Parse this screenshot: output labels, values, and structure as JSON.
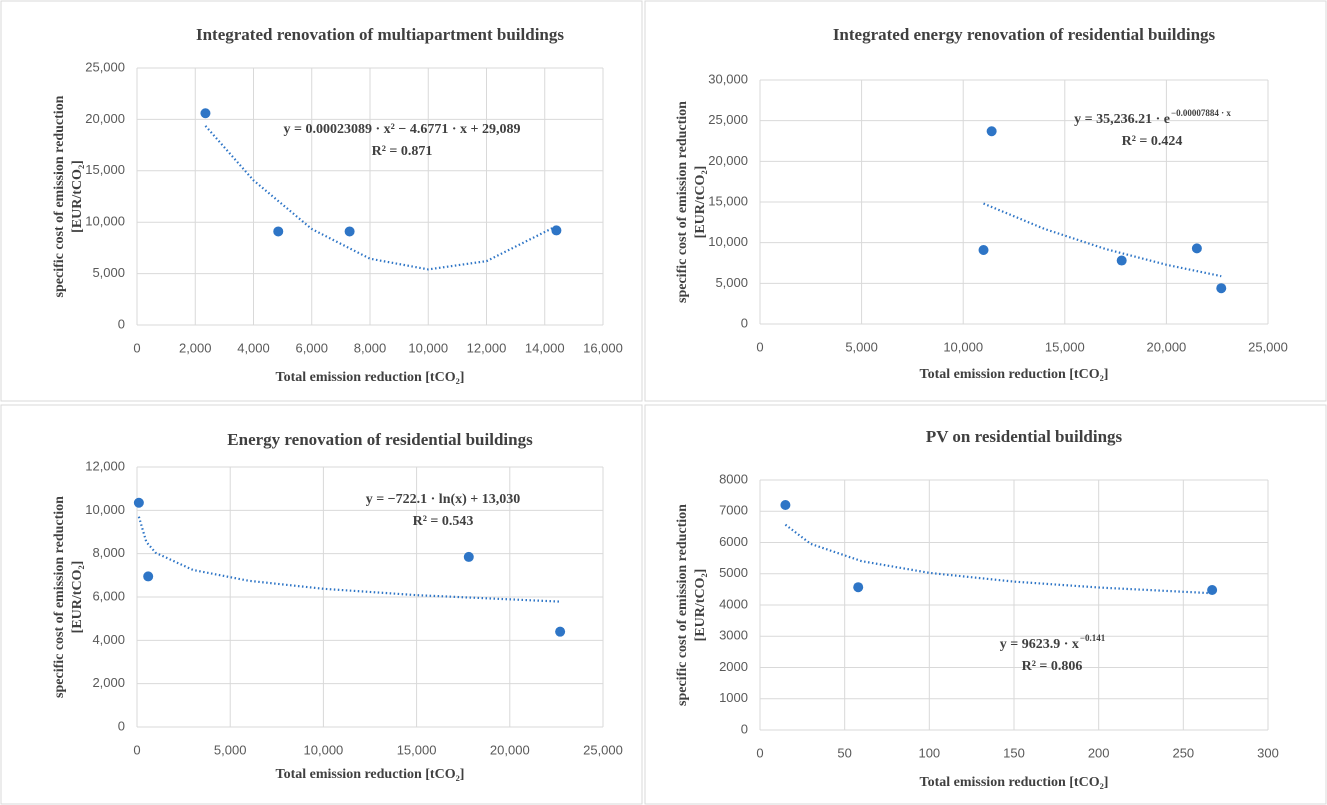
{
  "chart_data": [
    {
      "type": "scatter",
      "title": "Integrated renovation of multiapartment buildings",
      "xlabel": "Total emission reduction [tCO₂]",
      "ylabel": [
        "specific cost of emission reduction",
        "[EUR/tCO₂]"
      ],
      "x": [
        2350,
        4850,
        7300,
        14400
      ],
      "values": [
        20600,
        9100,
        9100,
        9200
      ],
      "color": "#2e75c6",
      "trendline": {
        "x": [
          2350,
          4000,
          6000,
          8000,
          10000,
          12000,
          14400
        ],
        "values": [
          19373,
          14075,
          9338,
          6449,
          5407,
          6212,
          9615
        ]
      },
      "equation": "y = 0.00023089 · x² − 4.6771 · x + 29,089",
      "r2": "R² = 0.871",
      "xlim": [
        0,
        16000
      ],
      "xticks": [
        0,
        {
          "value": 2000,
          "label": "2,000"
        },
        {
          "value": 4000,
          "label": "4,000"
        },
        {
          "value": 6000,
          "label": "6,000"
        },
        {
          "value": 8000,
          "label": "8,000"
        },
        {
          "value": 10000,
          "label": "10,000"
        },
        {
          "value": 12000,
          "label": "12,000"
        },
        {
          "value": 14000,
          "label": "14,000"
        },
        {
          "value": 16000,
          "label": "16,000"
        }
      ],
      "ylim": [
        0,
        25000
      ],
      "yticks": [
        0,
        {
          "value": 5000,
          "label": "5,000"
        },
        {
          "value": 10000,
          "label": "10,000"
        },
        {
          "value": 15000,
          "label": "15,000"
        },
        {
          "value": 20000,
          "label": "20,000"
        },
        {
          "value": 25000,
          "label": "25,000"
        }
      ],
      "grid": true
    },
    {
      "type": "scatter",
      "title": "Integrated energy renovation of residential buildings",
      "xlabel": "Total emission reduction [tCO₂]",
      "ylabel": [
        "specific cost of emission reduction",
        "[EUR/tCO₂]"
      ],
      "x": [
        11000,
        11400,
        17800,
        21500,
        22700
      ],
      "values": [
        9100,
        23700,
        7800,
        9300,
        4400
      ],
      "color": "#2e75c6",
      "trendline": {
        "x": [
          11000,
          14000,
          17000,
          20000,
          22700
        ],
        "values": [
          14806,
          11689,
          9226,
          7281,
          5883
        ]
      },
      "equation": "y = 35,236.21 · e",
      "equation_exponent": "−0.00007884 · x",
      "r2": "R² = 0.424",
      "xlim": [
        0,
        25000
      ],
      "xticks": [
        0,
        {
          "value": 5000,
          "label": "5,000"
        },
        {
          "value": 10000,
          "label": "10,000"
        },
        {
          "value": 15000,
          "label": "15,000"
        },
        {
          "value": 20000,
          "label": "20,000"
        },
        {
          "value": 25000,
          "label": "25,000"
        }
      ],
      "ylim": [
        0,
        30000
      ],
      "yticks": [
        0,
        {
          "value": 5000,
          "label": "5,000"
        },
        {
          "value": 10000,
          "label": "10,000"
        },
        {
          "value": 15000,
          "label": "15,000"
        },
        {
          "value": 20000,
          "label": "20,000"
        },
        {
          "value": 25000,
          "label": "25,000"
        },
        {
          "value": 30000,
          "label": "30,000"
        }
      ],
      "grid": true
    },
    {
      "type": "scatter",
      "title": "Energy renovation of residential buildings",
      "xlabel": "Total emission reduction [tCO₂]",
      "ylabel": [
        "specific cost of emission reduction",
        "[EUR/tCO₂]"
      ],
      "x": [
        100,
        600,
        17800,
        22700
      ],
      "values": [
        10350,
        6950,
        7850,
        4400
      ],
      "color": "#2e75c6",
      "trendline": {
        "x": [
          100,
          500,
          1000,
          3000,
          6000,
          10000,
          15000,
          22700
        ],
        "values": [
          9705,
          8542,
          8042,
          7249,
          6748,
          6379,
          6086,
          5787
        ]
      },
      "equation": "y = −722.1 · ln(x) + 13,030",
      "r2": "R² = 0.543",
      "xlim": [
        0,
        25000
      ],
      "xticks": [
        0,
        {
          "value": 5000,
          "label": "5,000"
        },
        {
          "value": 10000,
          "label": "10,000"
        },
        {
          "value": 15000,
          "label": "15,000"
        },
        {
          "value": 20000,
          "label": "20,000"
        },
        {
          "value": 25000,
          "label": "25,000"
        }
      ],
      "ylim": [
        0,
        12000
      ],
      "yticks": [
        0,
        {
          "value": 2000,
          "label": "2,000"
        },
        {
          "value": 4000,
          "label": "4,000"
        },
        {
          "value": 6000,
          "label": "6,000"
        },
        {
          "value": 8000,
          "label": "8,000"
        },
        {
          "value": 10000,
          "label": "10,000"
        },
        {
          "value": 12000,
          "label": "12,000"
        }
      ],
      "grid": true
    },
    {
      "type": "scatter",
      "title": "PV on residential buildings",
      "xlabel": "Total emission reduction [tCO₂]",
      "ylabel": [
        "specific cost of emission reduction",
        "[EUR/tCO₂]"
      ],
      "x": [
        15,
        58,
        267
      ],
      "values": [
        7200,
        4570,
        4480
      ],
      "color": "#2e75c6",
      "trendline": {
        "x": [
          15,
          30,
          60,
          100,
          150,
          200,
          267
        ],
        "values": [
          6570,
          5955,
          5404,
          5028,
          4748,
          4560,
          4377
        ]
      },
      "equation": "y = 9623.9 · x",
      "equation_exponent": "−0.141",
      "r2": "R² = 0.806",
      "xlim": [
        0,
        300
      ],
      "xticks": [
        0,
        50,
        100,
        150,
        200,
        250,
        300
      ],
      "ylim": [
        0,
        8000
      ],
      "yticks": [
        0,
        1000,
        2000,
        3000,
        4000,
        5000,
        6000,
        7000,
        8000
      ],
      "grid": true
    }
  ]
}
